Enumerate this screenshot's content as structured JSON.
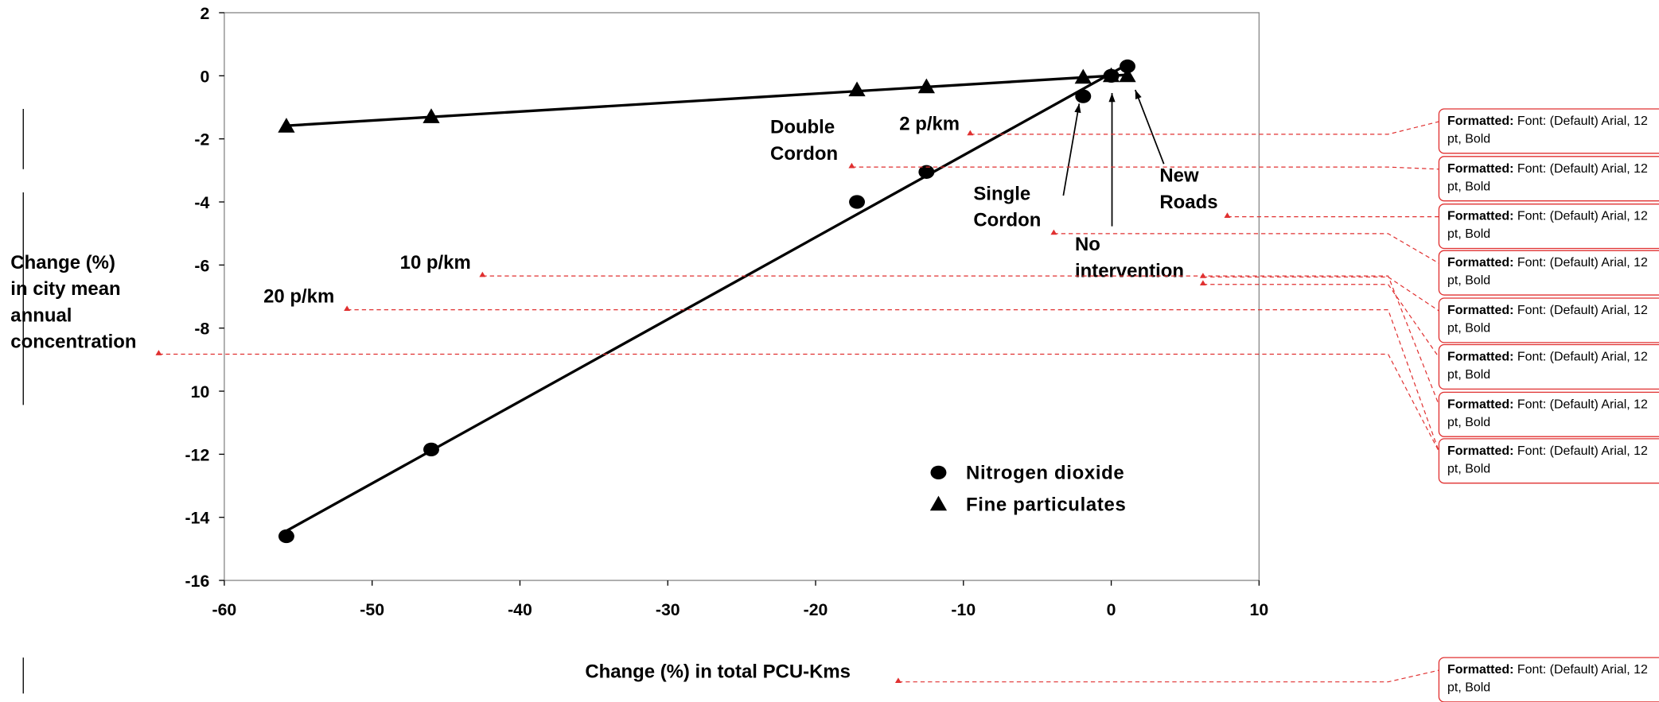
{
  "chart_data": {
    "type": "scatter",
    "x_label": "Change (%) in total PCU-Kms",
    "y_label": "Change (%)\nin city mean\nannual\nconcentration",
    "xlim": [
      -60,
      10
    ],
    "xticks": [
      -60,
      -50,
      -40,
      -30,
      -20,
      -10,
      0,
      10
    ],
    "ylim": [
      -16,
      2
    ],
    "yticks": [
      2,
      0,
      -2,
      -4,
      -6,
      -8,
      {
        "value": -10,
        "label": "10"
      },
      -12,
      -14,
      -16
    ],
    "trend_lines": true,
    "series": [
      {
        "name": "Nitrogen dioxide",
        "marker": "circle",
        "color": "#000000",
        "x": [
          -55.8,
          -46,
          -17.2,
          -12.5,
          -1.9,
          0,
          1.1
        ],
        "values": [
          -14.6,
          -11.85,
          -4,
          -3.05,
          -0.65,
          0,
          0.3
        ]
      },
      {
        "name": "Fine particulates",
        "marker": "triangle",
        "color": "#000000",
        "x": [
          -55.8,
          -46,
          -17.2,
          -12.5,
          -1.9,
          0,
          1.1
        ],
        "values": [
          -1.6,
          -1.3,
          -0.45,
          -0.35,
          -0.05,
          0,
          0
        ]
      }
    ],
    "annotations": [
      "2 p/km",
      "Double\nCordon",
      "10 p/km",
      "20 p/km",
      "Single\nCordon",
      "No\nintervention",
      "New\nRoads"
    ]
  },
  "comments": [
    {
      "label": "Formatted:",
      "text": "Font: (Default) Arial, 12 pt, Bold"
    },
    {
      "label": "Formatted:",
      "text": "Font: (Default) Arial, 12 pt, Bold"
    },
    {
      "label": "Formatted:",
      "text": "Font: (Default) Arial, 12 pt, Bold"
    },
    {
      "label": "Formatted:",
      "text": "Font: (Default) Arial, 12 pt, Bold"
    },
    {
      "label": "Formatted:",
      "text": "Font: (Default) Arial, 12 pt, Bold"
    },
    {
      "label": "Formatted:",
      "text": "Font: (Default) Arial, 12 pt, Bold"
    },
    {
      "label": "Formatted:",
      "text": "Font: (Default) Arial, 12 pt, Bold"
    },
    {
      "label": "Formatted:",
      "text": "Font: (Default) Arial, 12 pt, Bold"
    },
    {
      "label": "Formatted:",
      "text": "Font: (Default) Arial, 12 pt, Bold"
    }
  ]
}
